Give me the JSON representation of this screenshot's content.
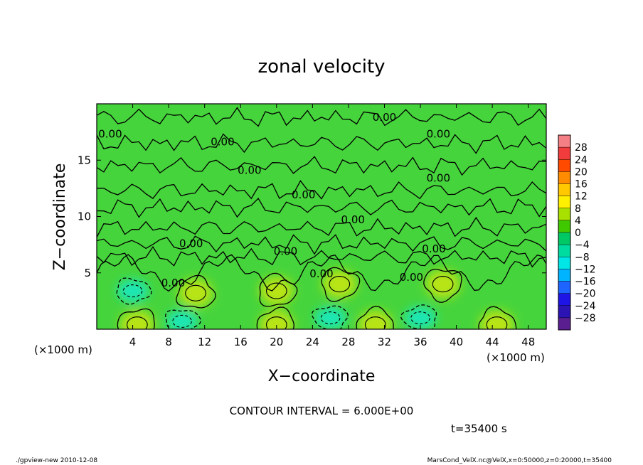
{
  "chart_data": {
    "type": "heatmap",
    "title": "zonal velocity",
    "xlabel": "X−coordinate",
    "ylabel": "Z−coordinate",
    "x_unit": "(×1000 m)",
    "x_unit_right": "(×1000 m)",
    "xlim": [
      0,
      50
    ],
    "ylim": [
      0,
      20
    ],
    "xticks": [
      "4",
      "8",
      "12",
      "16",
      "20",
      "24",
      "28",
      "32",
      "36",
      "40",
      "44",
      "48"
    ],
    "yticks": [
      "5",
      "10",
      "15"
    ],
    "contour_interval_text": "CONTOUR INTERVAL = 6.000E+00",
    "time_text": "t=35400 s",
    "contour_label_text": "0.00",
    "contour_labels": [
      {
        "x": 1.5,
        "z": 17.0
      },
      {
        "x": 14.0,
        "z": 16.3
      },
      {
        "x": 17.0,
        "z": 13.8
      },
      {
        "x": 23.0,
        "z": 11.6
      },
      {
        "x": 28.5,
        "z": 9.4
      },
      {
        "x": 32.0,
        "z": 18.5
      },
      {
        "x": 38.0,
        "z": 17.0
      },
      {
        "x": 38.0,
        "z": 13.1
      },
      {
        "x": 10.5,
        "z": 7.3
      },
      {
        "x": 21.0,
        "z": 6.6
      },
      {
        "x": 37.5,
        "z": 6.8
      },
      {
        "x": 25.0,
        "z": 4.6
      },
      {
        "x": 8.5,
        "z": 3.8
      },
      {
        "x": 35.0,
        "z": 4.3
      }
    ],
    "upper_contours_z": [
      18.8,
      16.5,
      14.5,
      12.3,
      10.8,
      9.0,
      7.6,
      6.4
    ],
    "warm_cells": [
      {
        "x": 11.0,
        "z": 3.2,
        "v": 6
      },
      {
        "x": 20.0,
        "z": 3.4,
        "v": 6
      },
      {
        "x": 27.0,
        "z": 4.0,
        "v": 6
      },
      {
        "x": 38.5,
        "z": 4.0,
        "v": 6
      },
      {
        "x": 4.5,
        "z": 0.4,
        "v": 8
      },
      {
        "x": 20.0,
        "z": 0.4,
        "v": 6
      },
      {
        "x": 31.0,
        "z": 0.4,
        "v": 6
      },
      {
        "x": 44.5,
        "z": 0.4,
        "v": 8
      }
    ],
    "cold_cells": [
      {
        "x": 4.0,
        "z": 3.4,
        "v": -8
      },
      {
        "x": 9.5,
        "z": 0.7,
        "v": -6
      },
      {
        "x": 26.0,
        "z": 1.0,
        "v": -5
      },
      {
        "x": 36.0,
        "z": 1.0,
        "v": -5
      }
    ],
    "colorbar": {
      "levels": [
        "28",
        "24",
        "20",
        "16",
        "12",
        "8",
        "4",
        "0",
        "−4",
        "−8",
        "−12",
        "−16",
        "−20",
        "−24",
        "−28"
      ],
      "colors": [
        "#f47f84",
        "#f03c3c",
        "#ff4a00",
        "#ff8c00",
        "#ffc800",
        "#fff000",
        "#a8e000",
        "#40c800",
        "#00c864",
        "#00dca0",
        "#00e6e6",
        "#00b4ff",
        "#1e64ff",
        "#1e14e6",
        "#2c14b4",
        "#5a1e90"
      ]
    },
    "colors": {
      "field_base": "#46d43c",
      "warm": "#b8e418",
      "cold": "#1ce6b4",
      "contour": "#000000"
    }
  },
  "footer": {
    "left": "./gpview-new  2010-12-08",
    "right": "MarsCond_VelX.nc@VelX,x=0:50000,z=0:20000,t=35400"
  }
}
